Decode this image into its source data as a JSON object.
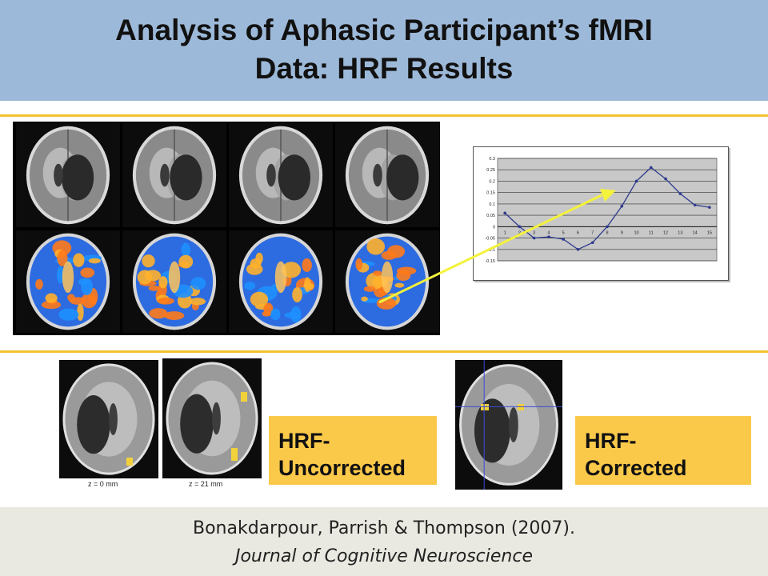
{
  "slide": {
    "title_line1": "Analysis of Aphasic Participant’s fMRI",
    "title_line2": "Data: HRF Results"
  },
  "colors": {
    "title_band": "#9db9d9",
    "accent_rule": "#f2c230",
    "label_box": "#fbc94a",
    "footer_band": "#e9e9e1",
    "chart_line": "#2e3a8c",
    "arrow": "#f4f23a"
  },
  "scans": {
    "grayscale_count": 4,
    "activation_count": 4,
    "uncorrected_slices": [
      {
        "label": "z =  0 mm"
      },
      {
        "label": "z =  21 mm"
      }
    ]
  },
  "chart_data": {
    "type": "line",
    "x": [
      1,
      2,
      3,
      4,
      5,
      6,
      7,
      8,
      9,
      10,
      11,
      12,
      13,
      14,
      15
    ],
    "values": [
      0.06,
      0.0,
      -0.05,
      -0.045,
      -0.055,
      -0.1,
      -0.07,
      0.0,
      0.09,
      0.2,
      0.26,
      0.21,
      0.145,
      0.095,
      0.085
    ],
    "y_ticks": [
      "0.3",
      "0.25",
      "0.2",
      "0.15",
      "0.1",
      "0.05",
      "0",
      "-0.05",
      "-0.1",
      "-0.15"
    ],
    "x_ticks": [
      "1",
      "2",
      "3",
      "4",
      "5",
      "6",
      "7",
      "8",
      "9",
      "10",
      "11",
      "12",
      "13",
      "14",
      "15"
    ],
    "ylim": [
      -0.15,
      0.3
    ],
    "grid": true,
    "plot_background": "#c8c8c8"
  },
  "labels": {
    "uncorrected": "HRF-\nUncorrected",
    "corrected": "HRF-\nCorrected"
  },
  "citation": {
    "authors": "Bonakdarpour, Parrish & Thompson (2007).",
    "journal": "Journal of Cognitive Neuroscience"
  }
}
